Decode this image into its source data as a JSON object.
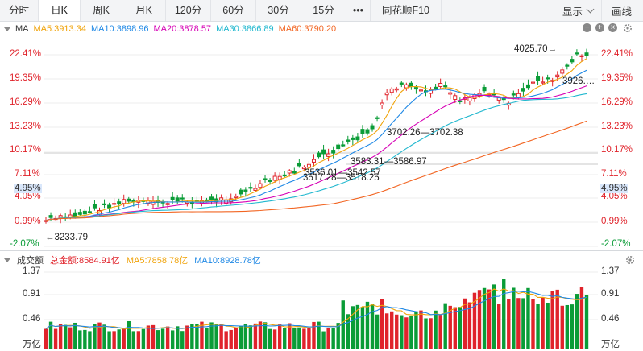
{
  "toolbar": {
    "tabs": [
      {
        "label": "分时",
        "active": false
      },
      {
        "label": "日K",
        "active": true
      },
      {
        "label": "周K",
        "active": false
      },
      {
        "label": "月K",
        "active": false
      },
      {
        "label": "120分",
        "active": false
      },
      {
        "label": "60分",
        "active": false
      },
      {
        "label": "30分",
        "active": false
      },
      {
        "label": "15分",
        "active": false
      },
      {
        "label": "•••",
        "active": false
      },
      {
        "label": "同花顺F10",
        "active": false
      }
    ],
    "display_label": "显示",
    "draw_label": "画线"
  },
  "legend": {
    "title": "MA",
    "ma5": "MA5:3913.34",
    "ma10": "MA10:3898.96",
    "ma20": "MA20:3878.57",
    "ma30": "MA30:3866.89",
    "ma60": "MA60:3790.20",
    "colors": {
      "ma5": "#f0a30a",
      "ma10": "#1e88e5",
      "ma20": "#d600b5",
      "ma30": "#22b8cf",
      "ma60": "#f26522"
    }
  },
  "price_axis": {
    "left": [
      "22.41%",
      "19.35%",
      "16.29%",
      "13.23%",
      "10.17%",
      "7.11%",
      "4.05%",
      "0.99%",
      "-2.07%"
    ],
    "right": [
      "22.41%",
      "19.35%",
      "16.29%",
      "13.23%",
      "10.17%",
      "7.11%",
      "4.05%",
      "0.99%",
      "-2.07%"
    ],
    "current_left": "4.95%",
    "current_right": "4.95%"
  },
  "annotations": {
    "high": "4025.70→",
    "low": "←3233.79",
    "last": "3926.…",
    "gap1": "3702.26—3702.38",
    "gap2": "3583.31—3586.97",
    "gap3": "3536.01—3542.57",
    "gap4": "3517.28—3518.25"
  },
  "volume": {
    "title": "成交额",
    "total": "总金额:8584.91亿",
    "ma5": "MA5:7858.78亿",
    "ma10": "MA10:8928.78亿",
    "axis": [
      "1.37",
      "0.91",
      "0.46",
      "万亿"
    ],
    "axis_right": [
      "1.37",
      "0.91",
      "0.46",
      "万亿"
    ]
  },
  "colors": {
    "up": "#e0232b",
    "down": "#0a9c37",
    "accent": "#1e88e5"
  },
  "icons": [
    "chevron-down-icon",
    "minus-icon",
    "plus-icon",
    "close-icon",
    "settings-icon"
  ]
}
